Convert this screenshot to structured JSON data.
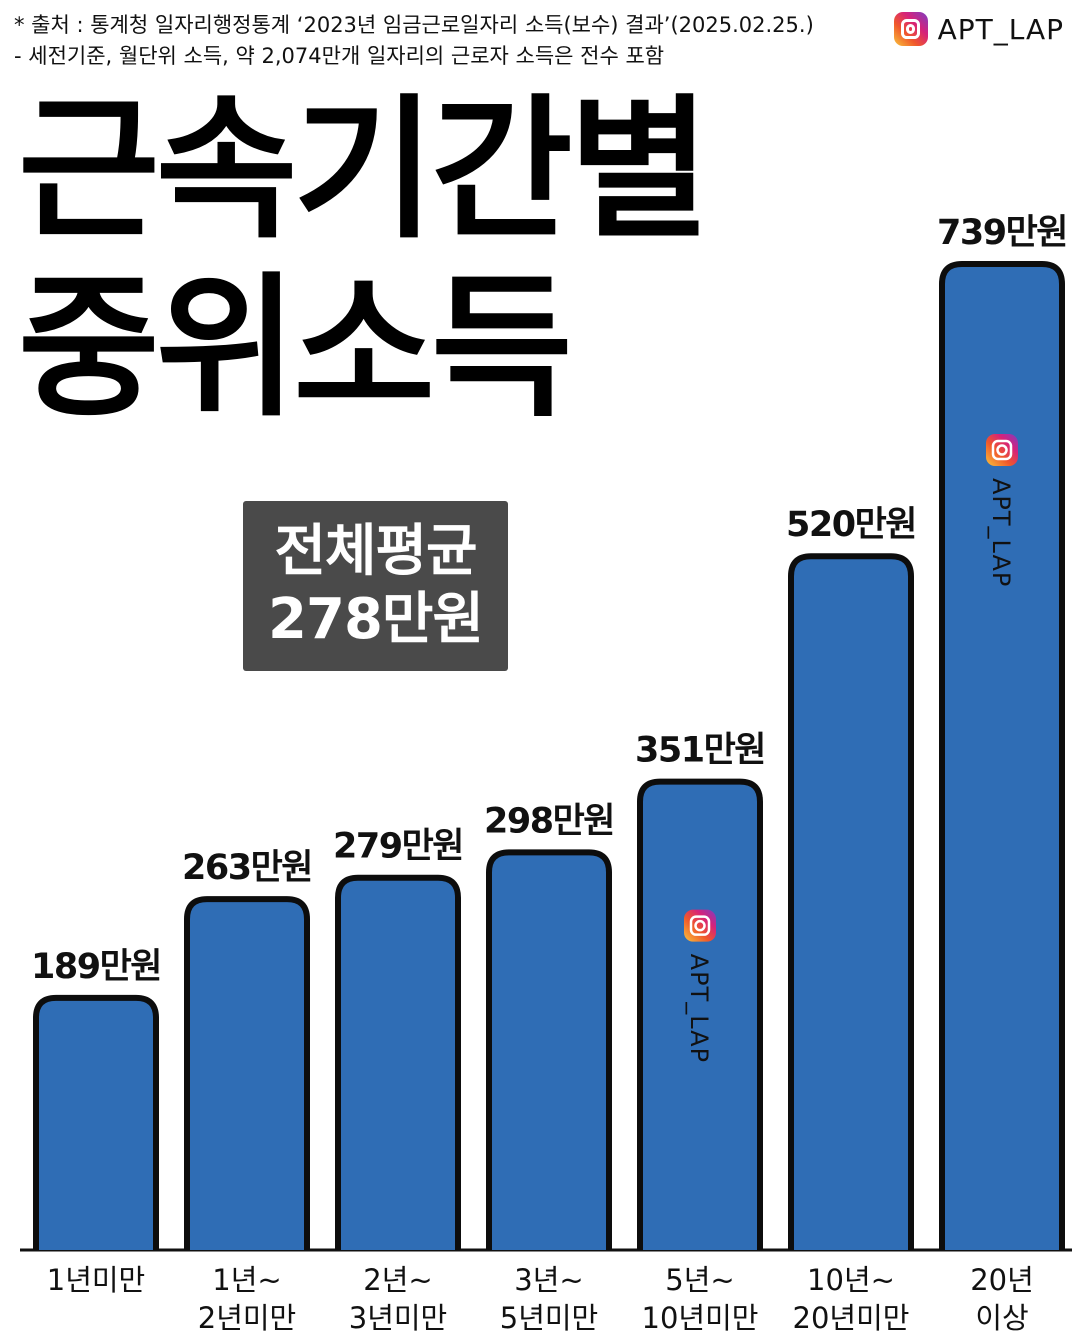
{
  "source": {
    "line1": "* 출처 : 통계청 일자리행정통계 ‘2023년 임금근로일자리 소득(보수) 결과’(2025.02.25.)",
    "line2": " - 세전기준, 월단위 소득, 약 2,074만개 일자리의 근로자 소득은 전수 포함"
  },
  "brand": {
    "icon": "instagram-icon",
    "name": "APT_LAP"
  },
  "title": {
    "line1": "근속기간별",
    "line2": "중위소득"
  },
  "average": {
    "label": "전체평균",
    "value": "278만원"
  },
  "colors": {
    "bar": "#2f6db5",
    "bar_outline": "#0d0d0d",
    "avg_box": "#4a4a4a"
  },
  "chart_data": {
    "type": "bar",
    "categories": [
      [
        "1년미만"
      ],
      [
        "1년~",
        "2년미만"
      ],
      [
        "2년~",
        "3년미만"
      ],
      [
        "3년~",
        "5년미만"
      ],
      [
        "5년~",
        "10년미만"
      ],
      [
        "10년~",
        "20년미만"
      ],
      [
        "20년",
        "이상"
      ]
    ],
    "values": [
      189,
      263,
      279,
      298,
      351,
      520,
      739
    ],
    "value_labels": [
      "189만원",
      "263만원",
      "279만원",
      "298만원",
      "351만원",
      "520만원",
      "739만원"
    ],
    "unit": "만원",
    "watermarks": [
      {
        "bar_index": 4,
        "text": "APT_LAP",
        "icon": "instagram-icon"
      },
      {
        "bar_index": 6,
        "text": "APT_LAP",
        "icon": "instagram-icon"
      }
    ]
  }
}
